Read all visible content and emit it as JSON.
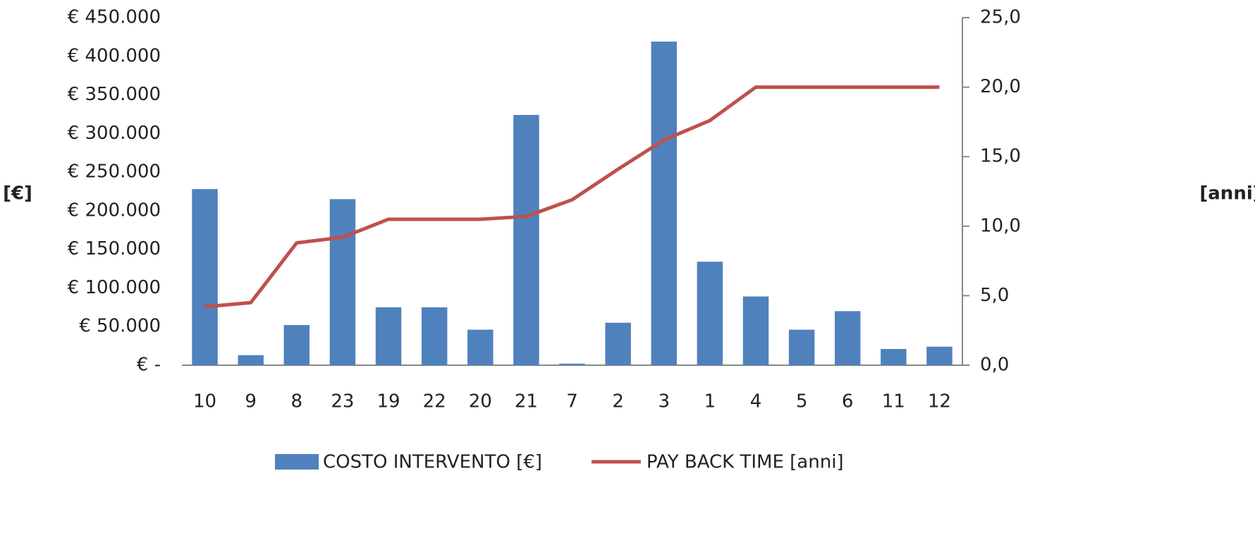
{
  "chart_data": {
    "type": "bar",
    "categories": [
      "10",
      "9",
      "8",
      "23",
      "19",
      "22",
      "20",
      "21",
      "7",
      "2",
      "3",
      "1",
      "4",
      "5",
      "6",
      "11",
      "12"
    ],
    "series": [
      {
        "name": "COSTO INTERVENTO [€]",
        "type": "bar",
        "color": "#4f81bd",
        "values": [
          228000,
          13000,
          52000,
          215000,
          75000,
          75000,
          46000,
          324000,
          2000,
          55000,
          419000,
          134000,
          89000,
          46000,
          70000,
          21000,
          24000
        ]
      },
      {
        "name": "PAY BACK TIME [anni]",
        "type": "line",
        "color": "#c0504d",
        "axis": "y2",
        "values": [
          4.2,
          4.5,
          8.8,
          9.2,
          10.5,
          10.5,
          10.5,
          10.7,
          11.9,
          14.1,
          16.2,
          17.6,
          20,
          20,
          20,
          20,
          20
        ]
      }
    ],
    "ylabel": "[€]",
    "y2label": "[anni]",
    "ylim": [
      0,
      450000
    ],
    "yticks": [
      {
        "value": 0,
        "label": "€ -"
      },
      {
        "value": 50000,
        "label": "€ 50.000"
      },
      {
        "value": 100000,
        "label": "€ 100.000"
      },
      {
        "value": 150000,
        "label": "€ 150.000"
      },
      {
        "value": 200000,
        "label": "€ 200.000"
      },
      {
        "value": 250000,
        "label": "€ 250.000"
      },
      {
        "value": 300000,
        "label": "€ 300.000"
      },
      {
        "value": 350000,
        "label": "€ 350.000"
      },
      {
        "value": 400000,
        "label": "€ 400.000"
      },
      {
        "value": 450000,
        "label": "€ 450.000"
      }
    ],
    "y2lim": [
      0,
      25
    ],
    "y2ticks": [
      {
        "value": 0,
        "label": "0,0"
      },
      {
        "value": 5,
        "label": "5,0"
      },
      {
        "value": 10,
        "label": "10,0"
      },
      {
        "value": 15,
        "label": "15,0"
      },
      {
        "value": 20,
        "label": "20,0"
      },
      {
        "value": 25,
        "label": "25,0"
      }
    ],
    "legend": "bottom"
  }
}
